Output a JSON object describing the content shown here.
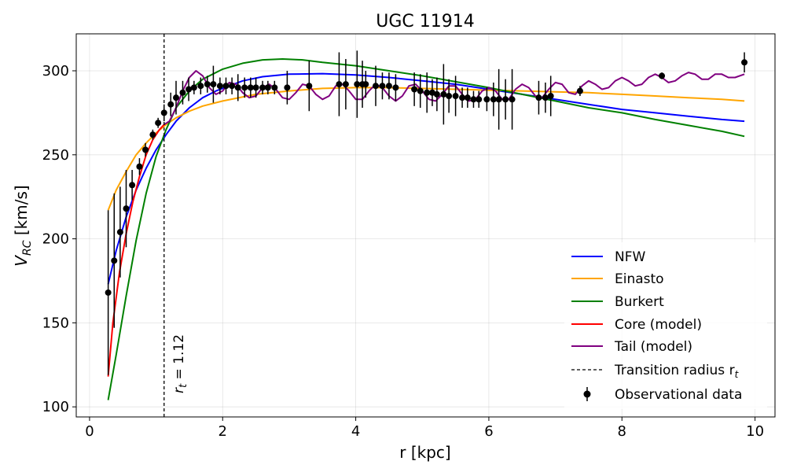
{
  "chart_data": {
    "type": "line",
    "title": "UGC 11914",
    "xlabel": "r [kpc]",
    "ylabel_main": "V",
    "ylabel_sub": "RC",
    "ylabel_rest": " [km/s]",
    "xlim": [
      -0.2,
      10.3
    ],
    "ylim": [
      94,
      322
    ],
    "xticks": [
      0,
      2,
      4,
      6,
      8,
      10
    ],
    "yticks": [
      100,
      150,
      200,
      250,
      300
    ],
    "grid": true,
    "legend_position": "lower-right",
    "transition_radius": 1.12,
    "annotation": {
      "prefix": "r",
      "sub": "t",
      "suffix": " = 1.12"
    },
    "series": [
      {
        "name": "NFW",
        "color": "#0000ff",
        "x": [
          0.28,
          0.4,
          0.55,
          0.7,
          0.85,
          1.0,
          1.15,
          1.3,
          1.5,
          1.7,
          1.9,
          2.1,
          2.3,
          2.6,
          3.0,
          3.5,
          4.0,
          4.5,
          5.0,
          5.5,
          6.0,
          6.5,
          7.0,
          7.5,
          8.0,
          8.5,
          9.0,
          9.5,
          9.84
        ],
        "y": [
          173,
          193,
          213,
          229,
          242,
          253,
          262,
          270,
          278,
          284,
          288,
          291,
          294,
          296.5,
          298,
          298.3,
          297.5,
          296,
          294,
          292,
          289,
          286,
          283,
          280,
          277,
          275,
          273,
          271,
          270
        ]
      },
      {
        "name": "Einasto",
        "color": "#ffa500",
        "x": [
          0.28,
          0.4,
          0.55,
          0.7,
          0.85,
          1.0,
          1.15,
          1.3,
          1.5,
          1.7,
          2.0,
          2.5,
          3.0,
          3.5,
          4.0,
          4.5,
          5.0,
          5.5,
          6.0,
          6.5,
          7.0,
          7.5,
          8.0,
          8.5,
          9.0,
          9.5,
          9.84
        ],
        "y": [
          217,
          229,
          240,
          250,
          257,
          263,
          268,
          272,
          276,
          279,
          282,
          286,
          288,
          289.5,
          290,
          290,
          289.5,
          289,
          288.5,
          288,
          287.5,
          287,
          286,
          285,
          284,
          283,
          282
        ]
      },
      {
        "name": "Burkert",
        "color": "#008000",
        "x": [
          0.28,
          0.4,
          0.55,
          0.7,
          0.85,
          1.0,
          1.15,
          1.3,
          1.5,
          1.7,
          2.0,
          2.3,
          2.6,
          2.9,
          3.2,
          3.5,
          4.0,
          4.5,
          5.0,
          5.5,
          6.0,
          6.5,
          7.0,
          7.5,
          8.0,
          8.5,
          9.0,
          9.5,
          9.84
        ],
        "y": [
          104,
          131,
          166,
          199,
          227,
          249,
          265,
          278,
          288,
          295,
          301,
          304.5,
          306.5,
          307,
          306.5,
          305,
          303,
          300,
          297,
          293.5,
          290,
          286,
          282,
          278,
          275,
          271,
          267.5,
          264,
          261
        ]
      },
      {
        "name": "Core (model)",
        "color": "#ff0000",
        "x": [
          0.28,
          0.35,
          0.45,
          0.55,
          0.65,
          0.75,
          0.85,
          0.95,
          1.05,
          1.12
        ],
        "y": [
          118,
          150,
          180,
          203,
          222,
          237,
          250,
          259,
          265,
          268
        ]
      },
      {
        "name": "Tail (model)",
        "color": "#800080",
        "x": [
          1.12,
          1.2,
          1.3,
          1.4,
          1.5,
          1.6,
          1.7,
          1.8,
          1.9,
          2.0,
          2.1,
          2.2,
          2.3,
          2.4,
          2.5,
          2.6,
          2.7,
          2.8,
          2.9,
          3.0,
          3.1,
          3.2,
          3.3,
          3.4,
          3.5,
          3.6,
          3.7,
          3.8,
          3.9,
          4.0,
          4.1,
          4.2,
          4.3,
          4.4,
          4.5,
          4.6,
          4.7,
          4.8,
          4.9,
          5.0,
          5.1,
          5.2,
          5.3,
          5.4,
          5.5,
          5.6,
          5.7,
          5.8,
          5.9,
          6.0,
          6.1,
          6.2,
          6.3,
          6.4,
          6.5,
          6.6,
          6.7,
          6.8,
          6.9,
          7.0,
          7.1,
          7.2,
          7.3,
          7.4,
          7.5,
          7.6,
          7.7,
          7.8,
          7.9,
          8.0,
          8.1,
          8.2,
          8.3,
          8.4,
          8.5,
          8.6,
          8.7,
          8.8,
          8.9,
          9.0,
          9.1,
          9.2,
          9.3,
          9.4,
          9.5,
          9.6,
          9.7,
          9.84
        ],
        "y": [
          268,
          270,
          278,
          288,
          296,
          300,
          297,
          290,
          286,
          288,
          293,
          292,
          287,
          284,
          285,
          290,
          292,
          289,
          284,
          283,
          287,
          292,
          291,
          286,
          283,
          285,
          291,
          292,
          288,
          283,
          283,
          288,
          292,
          290,
          285,
          282,
          285,
          291,
          292,
          288,
          283,
          282,
          286,
          291,
          291,
          286,
          282,
          283,
          288,
          290,
          288,
          283,
          283,
          289,
          292,
          290,
          285,
          284,
          289,
          293,
          292,
          287,
          286,
          291,
          294,
          292,
          289,
          290,
          294,
          296,
          294,
          291,
          292,
          296,
          298,
          296,
          293,
          294,
          297,
          299,
          298,
          295,
          295,
          298,
          298,
          296,
          296,
          298
        ]
      }
    ],
    "transition_series": {
      "name": "Transition radius r",
      "name_sub": "t",
      "color": "#000000"
    },
    "observations": {
      "name": "Observational data",
      "color": "#000000",
      "points": [
        {
          "x": 0.28,
          "y": 168,
          "err": 49
        },
        {
          "x": 0.37,
          "y": 187,
          "err": 40
        },
        {
          "x": 0.46,
          "y": 204,
          "err": 27
        },
        {
          "x": 0.55,
          "y": 218,
          "err": 23
        },
        {
          "x": 0.64,
          "y": 232,
          "err": 9
        },
        {
          "x": 0.75,
          "y": 243,
          "err": 5
        },
        {
          "x": 0.84,
          "y": 253,
          "err": 4
        },
        {
          "x": 0.95,
          "y": 262,
          "err": 3
        },
        {
          "x": 1.03,
          "y": 269,
          "err": 3
        },
        {
          "x": 1.12,
          "y": 275,
          "err": 5
        },
        {
          "x": 1.22,
          "y": 280,
          "err": 7
        },
        {
          "x": 1.3,
          "y": 284,
          "err": 10
        },
        {
          "x": 1.4,
          "y": 287,
          "err": 7
        },
        {
          "x": 1.49,
          "y": 289,
          "err": 7
        },
        {
          "x": 1.57,
          "y": 290,
          "err": 4
        },
        {
          "x": 1.67,
          "y": 291,
          "err": 5
        },
        {
          "x": 1.77,
          "y": 292,
          "err": 5
        },
        {
          "x": 1.86,
          "y": 292,
          "err": 11
        },
        {
          "x": 1.96,
          "y": 291,
          "err": 5
        },
        {
          "x": 2.05,
          "y": 291,
          "err": 5
        },
        {
          "x": 2.14,
          "y": 291,
          "err": 5
        },
        {
          "x": 2.23,
          "y": 290,
          "err": 8
        },
        {
          "x": 2.33,
          "y": 290,
          "err": 6
        },
        {
          "x": 2.42,
          "y": 290,
          "err": 6
        },
        {
          "x": 2.5,
          "y": 290,
          "err": 6
        },
        {
          "x": 2.6,
          "y": 290,
          "err": 4
        },
        {
          "x": 2.68,
          "y": 290,
          "err": 4
        },
        {
          "x": 2.78,
          "y": 290,
          "err": 4
        },
        {
          "x": 2.97,
          "y": 290,
          "err": 10
        },
        {
          "x": 3.3,
          "y": 291,
          "err": 15
        },
        {
          "x": 3.75,
          "y": 292,
          "err": 19
        },
        {
          "x": 3.85,
          "y": 292,
          "err": 15
        },
        {
          "x": 4.02,
          "y": 292,
          "err": 20
        },
        {
          "x": 4.1,
          "y": 292,
          "err": 14
        },
        {
          "x": 4.15,
          "y": 292,
          "err": 8
        },
        {
          "x": 4.3,
          "y": 291,
          "err": 12
        },
        {
          "x": 4.4,
          "y": 291,
          "err": 8
        },
        {
          "x": 4.5,
          "y": 291,
          "err": 8
        },
        {
          "x": 4.6,
          "y": 290,
          "err": 8
        },
        {
          "x": 4.88,
          "y": 289,
          "err": 10
        },
        {
          "x": 4.97,
          "y": 288,
          "err": 10
        },
        {
          "x": 5.07,
          "y": 287,
          "err": 12
        },
        {
          "x": 5.15,
          "y": 287,
          "err": 8
        },
        {
          "x": 5.22,
          "y": 286,
          "err": 10
        },
        {
          "x": 5.32,
          "y": 286,
          "err": 18
        },
        {
          "x": 5.4,
          "y": 285,
          "err": 10
        },
        {
          "x": 5.5,
          "y": 285,
          "err": 12
        },
        {
          "x": 5.6,
          "y": 284,
          "err": 6
        },
        {
          "x": 5.68,
          "y": 284,
          "err": 6
        },
        {
          "x": 5.77,
          "y": 283,
          "err": 5
        },
        {
          "x": 5.85,
          "y": 283,
          "err": 5
        },
        {
          "x": 5.97,
          "y": 283,
          "err": 7
        },
        {
          "x": 6.07,
          "y": 283,
          "err": 10
        },
        {
          "x": 6.15,
          "y": 283,
          "err": 18
        },
        {
          "x": 6.25,
          "y": 283,
          "err": 12
        },
        {
          "x": 6.35,
          "y": 283,
          "err": 18
        },
        {
          "x": 6.75,
          "y": 284,
          "err": 10
        },
        {
          "x": 6.85,
          "y": 284,
          "err": 9
        },
        {
          "x": 6.93,
          "y": 285,
          "err": 12
        },
        {
          "x": 7.37,
          "y": 288,
          "err": 3
        },
        {
          "x": 8.6,
          "y": 297,
          "err": 2
        },
        {
          "x": 9.84,
          "y": 305,
          "err": 6
        }
      ]
    }
  }
}
